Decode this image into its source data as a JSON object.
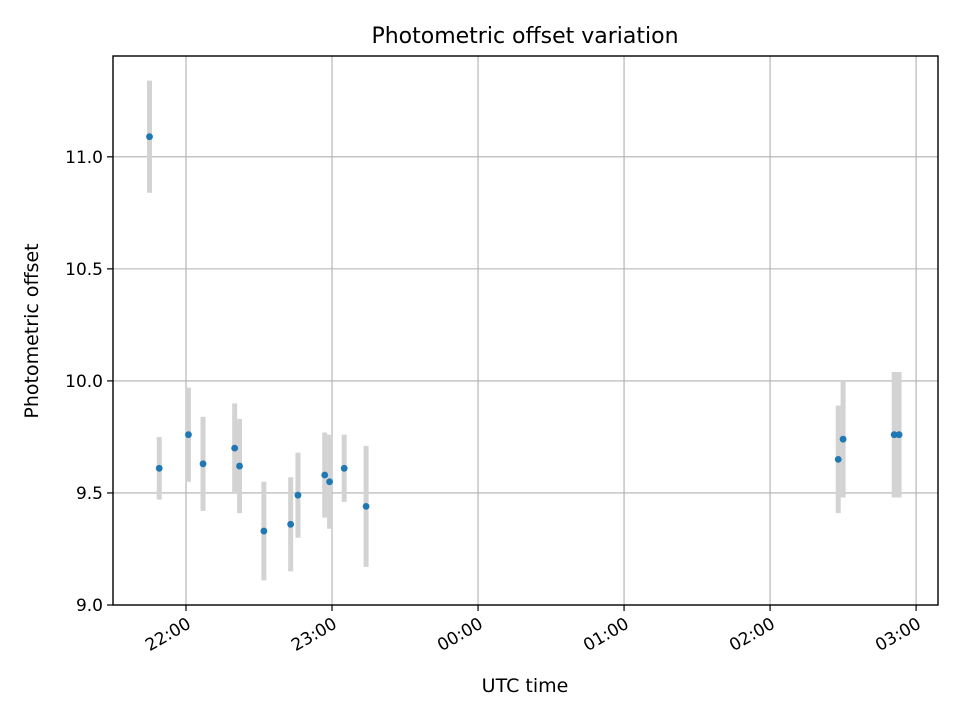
{
  "chart_data": {
    "type": "scatter",
    "title": "Photometric offset variation",
    "xlabel": "UTC time",
    "ylabel": "Photometric offset",
    "x_ticks": [
      "22:00",
      "23:00",
      "00:00",
      "01:00",
      "02:00",
      "03:00"
    ],
    "y_ticks": [
      "9.0",
      "9.5",
      "10.0",
      "10.5",
      "11.0"
    ],
    "xlim": [
      "21:30",
      "03:09"
    ],
    "ylim": [
      9.0,
      11.45
    ],
    "grid": true,
    "colors": {
      "marker": "#1f77b4",
      "errorbar": "#d3d3d3",
      "grid": "#b0b0b0"
    },
    "series": [
      {
        "points": [
          {
            "x": "21:45",
            "y": 11.09,
            "err": 0.25
          },
          {
            "x": "21:49",
            "y": 9.61,
            "err": 0.14
          },
          {
            "x": "22:01",
            "y": 9.76,
            "err": 0.21
          },
          {
            "x": "22:07",
            "y": 9.63,
            "err": 0.21
          },
          {
            "x": "22:20",
            "y": 9.7,
            "err": 0.2
          },
          {
            "x": "22:22",
            "y": 9.62,
            "err": 0.21
          },
          {
            "x": "22:32",
            "y": 9.33,
            "err": 0.22
          },
          {
            "x": "22:43",
            "y": 9.36,
            "err": 0.21
          },
          {
            "x": "22:46",
            "y": 9.49,
            "err": 0.19
          },
          {
            "x": "22:57",
            "y": 9.58,
            "err": 0.19
          },
          {
            "x": "22:59",
            "y": 9.55,
            "err": 0.21
          },
          {
            "x": "23:05",
            "y": 9.61,
            "err": 0.15
          },
          {
            "x": "23:14",
            "y": 9.44,
            "err": 0.27
          },
          {
            "x": "02:28",
            "y": 9.65,
            "err": 0.24
          },
          {
            "x": "02:30",
            "y": 9.74,
            "err": 0.26
          },
          {
            "x": "02:51",
            "y": 9.76,
            "err": 0.28
          },
          {
            "x": "02:53",
            "y": 9.76,
            "err": 0.28
          }
        ]
      }
    ]
  }
}
